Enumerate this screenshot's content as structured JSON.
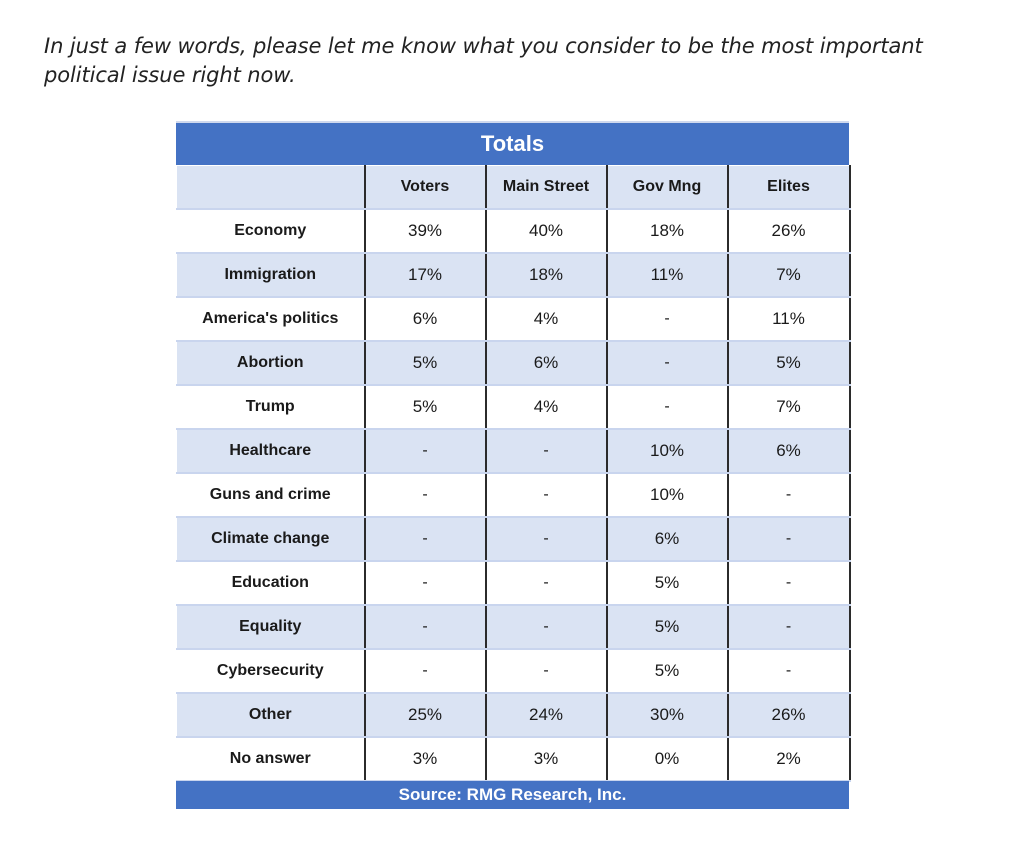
{
  "question": "In just a few words, please let me know what you consider to be the most important political issue right now.",
  "chart_data": {
    "type": "table",
    "title": "Totals",
    "columns": [
      "",
      "Voters",
      "Main Street",
      "Gov Mng",
      "Elites"
    ],
    "rows": [
      {
        "label": "Economy",
        "values": [
          "39%",
          "40%",
          "18%",
          "26%"
        ]
      },
      {
        "label": "Immigration",
        "values": [
          "17%",
          "18%",
          "11%",
          "7%"
        ]
      },
      {
        "label": "America's politics",
        "values": [
          "6%",
          "4%",
          "-",
          "11%"
        ]
      },
      {
        "label": "Abortion",
        "values": [
          "5%",
          "6%",
          "-",
          "5%"
        ]
      },
      {
        "label": "Trump",
        "values": [
          "5%",
          "4%",
          "-",
          "7%"
        ]
      },
      {
        "label": "Healthcare",
        "values": [
          "-",
          "-",
          "10%",
          "6%"
        ]
      },
      {
        "label": "Guns and crime",
        "values": [
          "-",
          "-",
          "10%",
          "-"
        ]
      },
      {
        "label": "Climate change",
        "values": [
          "-",
          "-",
          "6%",
          "-"
        ]
      },
      {
        "label": "Education",
        "values": [
          "-",
          "-",
          "5%",
          "-"
        ]
      },
      {
        "label": "Equality",
        "values": [
          "-",
          "-",
          "5%",
          "-"
        ]
      },
      {
        "label": "Cybersecurity",
        "values": [
          "-",
          "-",
          "5%",
          "-"
        ]
      },
      {
        "label": "Other",
        "values": [
          "25%",
          "24%",
          "30%",
          "26%"
        ]
      },
      {
        "label": "No answer",
        "values": [
          "3%",
          "3%",
          "0%",
          "2%"
        ]
      }
    ],
    "source": "Source: RMG Research, Inc."
  },
  "colors": {
    "banner": "#4472c4",
    "stripe": "#dae3f3",
    "banner_text": "#ffffff"
  }
}
